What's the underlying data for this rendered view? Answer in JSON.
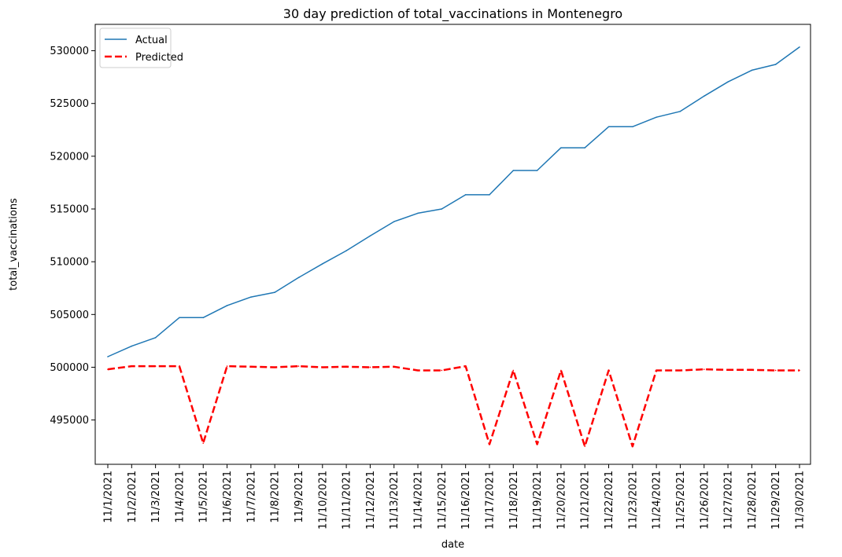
{
  "chart_data": {
    "type": "line",
    "title": "30 day prediction of total_vaccinations in Montenegro",
    "xlabel": "date",
    "ylabel": "total_vaccinations",
    "categories": [
      "11/1/2021",
      "11/2/2021",
      "11/3/2021",
      "11/4/2021",
      "11/5/2021",
      "11/6/2021",
      "11/7/2021",
      "11/8/2021",
      "11/9/2021",
      "11/10/2021",
      "11/11/2021",
      "11/12/2021",
      "11/13/2021",
      "11/14/2021",
      "11/15/2021",
      "11/16/2021",
      "11/17/2021",
      "11/18/2021",
      "11/19/2021",
      "11/20/2021",
      "11/21/2021",
      "11/22/2021",
      "11/23/2021",
      "11/24/2021",
      "11/25/2021",
      "11/26/2021",
      "11/27/2021",
      "11/28/2021",
      "11/29/2021",
      "11/30/2021"
    ],
    "yticks": [
      495000,
      500000,
      505000,
      510000,
      515000,
      520000,
      525000,
      530000
    ],
    "ylim": [
      490800,
      532500
    ],
    "grid": false,
    "legend": "top-left",
    "series": [
      {
        "name": "Actual",
        "color": "#1f77b4",
        "style": "solid",
        "values": [
          501000,
          502000,
          502800,
          504700,
          504700,
          505850,
          506650,
          507100,
          508500,
          509800,
          511050,
          512450,
          513800,
          514600,
          515000,
          516350,
          516350,
          518650,
          518650,
          520800,
          520800,
          522800,
          522800,
          523700,
          524250,
          525700,
          527050,
          528150,
          528700,
          530350
        ]
      },
      {
        "name": "Predicted",
        "color": "#ff0000",
        "style": "dashed",
        "values": [
          499800,
          500100,
          500100,
          500100,
          492800,
          500100,
          500050,
          500000,
          500100,
          500000,
          500050,
          500000,
          500050,
          499700,
          499700,
          500100,
          492700,
          499700,
          492700,
          499700,
          492500,
          499700,
          492500,
          499700,
          499700,
          499800,
          499750,
          499750,
          499700,
          499700
        ]
      }
    ]
  }
}
